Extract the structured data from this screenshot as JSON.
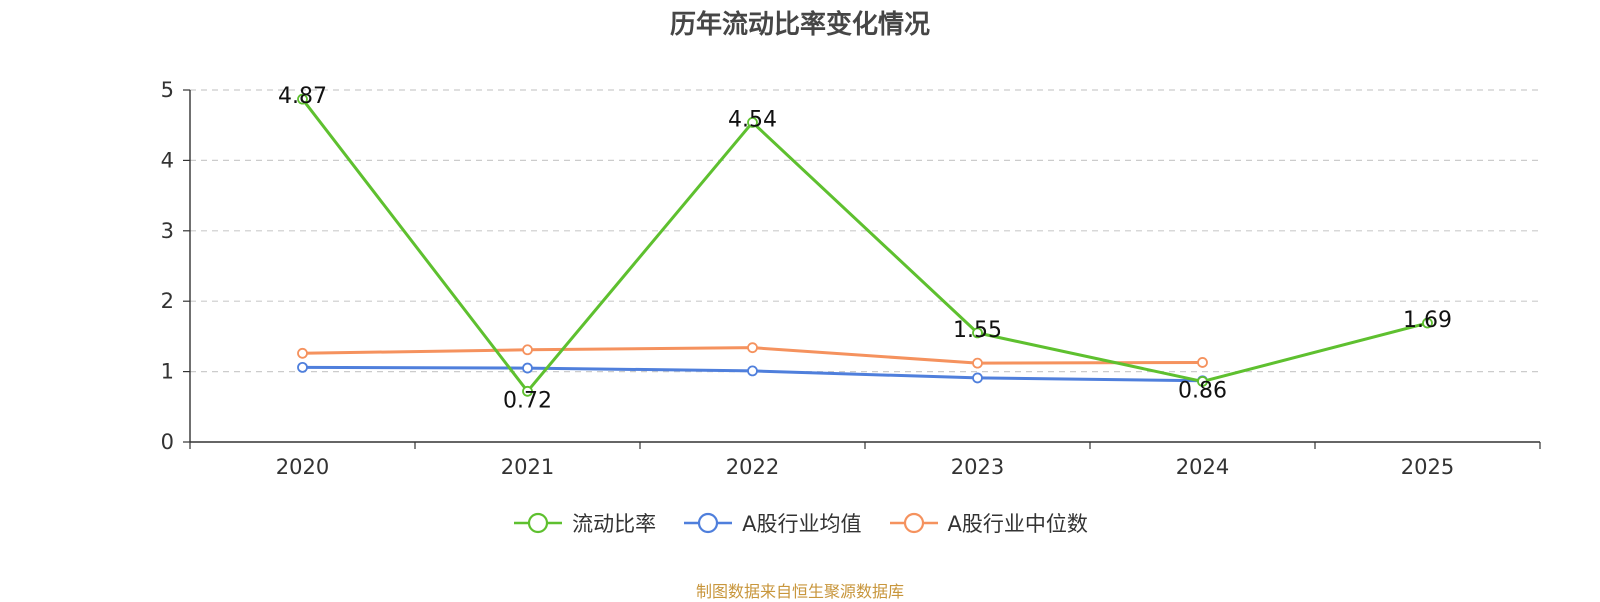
{
  "chart_data": {
    "type": "line",
    "title": "历年流动比率变化情况",
    "categories": [
      "2020",
      "2021",
      "2022",
      "2023",
      "2024",
      "2025"
    ],
    "ylim": [
      0,
      5
    ],
    "yticks": [
      "0",
      "1",
      "2",
      "3",
      "4",
      "5"
    ],
    "grid": true,
    "legend_position": "bottom",
    "series": [
      {
        "name": "流动比率",
        "color": "#5ec02f",
        "values": [
          4.87,
          0.72,
          4.54,
          1.55,
          0.86,
          1.69
        ],
        "labels": [
          "4.87",
          "0.72",
          "4.54",
          "1.55",
          "0.86",
          "1.69"
        ]
      },
      {
        "name": "A股行业均值",
        "color": "#4f7fdc",
        "values": [
          1.06,
          1.05,
          1.01,
          0.91,
          0.87,
          null
        ]
      },
      {
        "name": "A股行业中位数",
        "color": "#f5925e",
        "values": [
          1.26,
          1.31,
          1.34,
          1.12,
          1.13,
          null
        ]
      }
    ]
  },
  "footer": {
    "source": "制图数据来自恒生聚源数据库"
  }
}
